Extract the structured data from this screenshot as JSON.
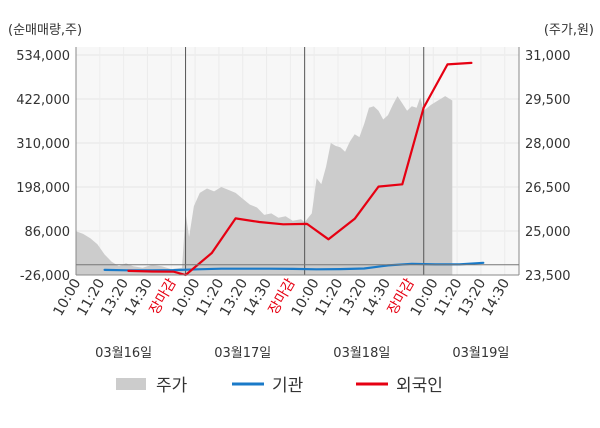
{
  "chart_data": {
    "type": "line",
    "left_axis_unit": "(순매매량,주)",
    "right_axis_unit": "(주가,원)",
    "left_ticks": [
      534000,
      422000,
      310000,
      198000,
      86000,
      -26000
    ],
    "left_tick_labels": [
      "534,000",
      "422,000",
      "310,000",
      "198,000",
      "86,000",
      "-26,000"
    ],
    "right_ticks": [
      31000,
      29500,
      28000,
      26500,
      25000,
      23500
    ],
    "right_tick_labels": [
      "31,000",
      "29,500",
      "28,000",
      "26,500",
      "25,000",
      "23,500"
    ],
    "ylim_left": [
      -26000,
      534000
    ],
    "ylim_right": [
      23500,
      31000
    ],
    "x_time_labels": [
      {
        "t": 0,
        "label": "10:00",
        "color": "#333333"
      },
      {
        "t": 1,
        "label": "11:20",
        "color": "#333333"
      },
      {
        "t": 2,
        "label": "13:20",
        "color": "#333333"
      },
      {
        "t": 3,
        "label": "14:30",
        "color": "#333333"
      },
      {
        "t": 4,
        "label": "장마감",
        "color": "#e60012"
      },
      {
        "t": 5,
        "label": "10:00",
        "color": "#333333"
      },
      {
        "t": 6,
        "label": "11:20",
        "color": "#333333"
      },
      {
        "t": 7,
        "label": "13:20",
        "color": "#333333"
      },
      {
        "t": 8,
        "label": "14:30",
        "color": "#333333"
      },
      {
        "t": 9,
        "label": "장마감",
        "color": "#e60012"
      },
      {
        "t": 10,
        "label": "10:00",
        "color": "#333333"
      },
      {
        "t": 11,
        "label": "11:20",
        "color": "#333333"
      },
      {
        "t": 12,
        "label": "13:20",
        "color": "#333333"
      },
      {
        "t": 13,
        "label": "14:30",
        "color": "#333333"
      },
      {
        "t": 14,
        "label": "장마감",
        "color": "#e60012"
      },
      {
        "t": 15,
        "label": "10:00",
        "color": "#333333"
      },
      {
        "t": 16,
        "label": "11:20",
        "color": "#333333"
      },
      {
        "t": 17,
        "label": "13:20",
        "color": "#333333"
      },
      {
        "t": 18,
        "label": "14:30",
        "color": "#333333"
      }
    ],
    "date_labels": [
      {
        "t": 2,
        "label": "03월16일"
      },
      {
        "t": 7,
        "label": "03월17일"
      },
      {
        "t": 12,
        "label": "03월18일"
      },
      {
        "t": 17,
        "label": "03월19일"
      }
    ],
    "day_separators": [
      4.6,
      9.6,
      14.6
    ],
    "series": [
      {
        "name": "주가",
        "kind": "area",
        "axis": "right",
        "color": "#cccccc",
        "points": [
          [
            0,
            24990
          ],
          [
            0.3,
            24900
          ],
          [
            0.6,
            24750
          ],
          [
            0.9,
            24550
          ],
          [
            1.2,
            24200
          ],
          [
            1.5,
            23950
          ],
          [
            1.8,
            23800
          ],
          [
            2.1,
            23900
          ],
          [
            2.4,
            23800
          ],
          [
            2.8,
            23750
          ],
          [
            3.2,
            23850
          ],
          [
            3.6,
            23800
          ],
          [
            4.0,
            23700
          ],
          [
            4.45,
            23750
          ],
          [
            4.6,
            25600
          ],
          [
            4.75,
            24800
          ],
          [
            4.95,
            25850
          ],
          [
            5.2,
            26300
          ],
          [
            5.5,
            26450
          ],
          [
            5.8,
            26350
          ],
          [
            6.1,
            26500
          ],
          [
            6.4,
            26400
          ],
          [
            6.7,
            26300
          ],
          [
            7.0,
            26100
          ],
          [
            7.3,
            25900
          ],
          [
            7.6,
            25800
          ],
          [
            7.9,
            25550
          ],
          [
            8.2,
            25600
          ],
          [
            8.5,
            25450
          ],
          [
            8.8,
            25500
          ],
          [
            9.1,
            25350
          ],
          [
            9.45,
            25400
          ],
          [
            9.6,
            25300
          ],
          [
            9.9,
            25600
          ],
          [
            10.1,
            26800
          ],
          [
            10.3,
            26600
          ],
          [
            10.5,
            27200
          ],
          [
            10.7,
            28000
          ],
          [
            10.9,
            27900
          ],
          [
            11.1,
            27850
          ],
          [
            11.3,
            27700
          ],
          [
            11.5,
            28050
          ],
          [
            11.7,
            28300
          ],
          [
            11.9,
            28200
          ],
          [
            12.1,
            28650
          ],
          [
            12.3,
            29200
          ],
          [
            12.5,
            29250
          ],
          [
            12.7,
            29100
          ],
          [
            12.9,
            28800
          ],
          [
            13.1,
            28950
          ],
          [
            13.3,
            29300
          ],
          [
            13.5,
            29600
          ],
          [
            13.7,
            29350
          ],
          [
            13.9,
            29100
          ],
          [
            14.1,
            29250
          ],
          [
            14.3,
            29200
          ],
          [
            14.45,
            29550
          ],
          [
            14.6,
            29100
          ],
          [
            14.9,
            29300
          ],
          [
            15.2,
            29450
          ],
          [
            15.5,
            29600
          ],
          [
            15.8,
            29450
          ]
        ]
      },
      {
        "name": "기관",
        "kind": "line",
        "axis": "left",
        "color": "#1a7ac8",
        "points": [
          [
            1.2,
            -13000
          ],
          [
            2.2,
            -14000
          ],
          [
            3.2,
            -14000
          ],
          [
            4.1,
            -13500
          ],
          [
            5.1,
            -11500
          ],
          [
            6.1,
            -10000
          ],
          [
            7.1,
            -10000
          ],
          [
            8.1,
            -10000
          ],
          [
            9.1,
            -10500
          ],
          [
            10.1,
            -11500
          ],
          [
            11.1,
            -11000
          ],
          [
            12.1,
            -9500
          ],
          [
            13.1,
            -1500
          ],
          [
            14.1,
            2500
          ],
          [
            15.1,
            1000
          ],
          [
            16.1,
            1000
          ],
          [
            17.1,
            5000
          ]
        ]
      },
      {
        "name": "외국인",
        "kind": "line",
        "axis": "left",
        "color": "#e60012",
        "points": [
          [
            2.2,
            -15500
          ],
          [
            3.2,
            -17000
          ],
          [
            4.1,
            -17500
          ],
          [
            4.6,
            -26000
          ],
          [
            5.7,
            30000
          ],
          [
            6.7,
            118000
          ],
          [
            7.7,
            109000
          ],
          [
            8.7,
            103000
          ],
          [
            9.7,
            104000
          ],
          [
            10.6,
            65000
          ],
          [
            11.7,
            117000
          ],
          [
            12.7,
            199000
          ],
          [
            13.7,
            205000
          ],
          [
            14.6,
            400000
          ],
          [
            15.6,
            510000
          ],
          [
            16.6,
            514000
          ]
        ]
      }
    ],
    "legend": [
      {
        "label": "주가",
        "kind": "area",
        "color": "#cccccc"
      },
      {
        "label": "기관",
        "kind": "line",
        "color": "#1a7ac8"
      },
      {
        "label": "외국인",
        "kind": "line",
        "color": "#e60012"
      }
    ],
    "grid": true,
    "legend_position": "bottom"
  }
}
